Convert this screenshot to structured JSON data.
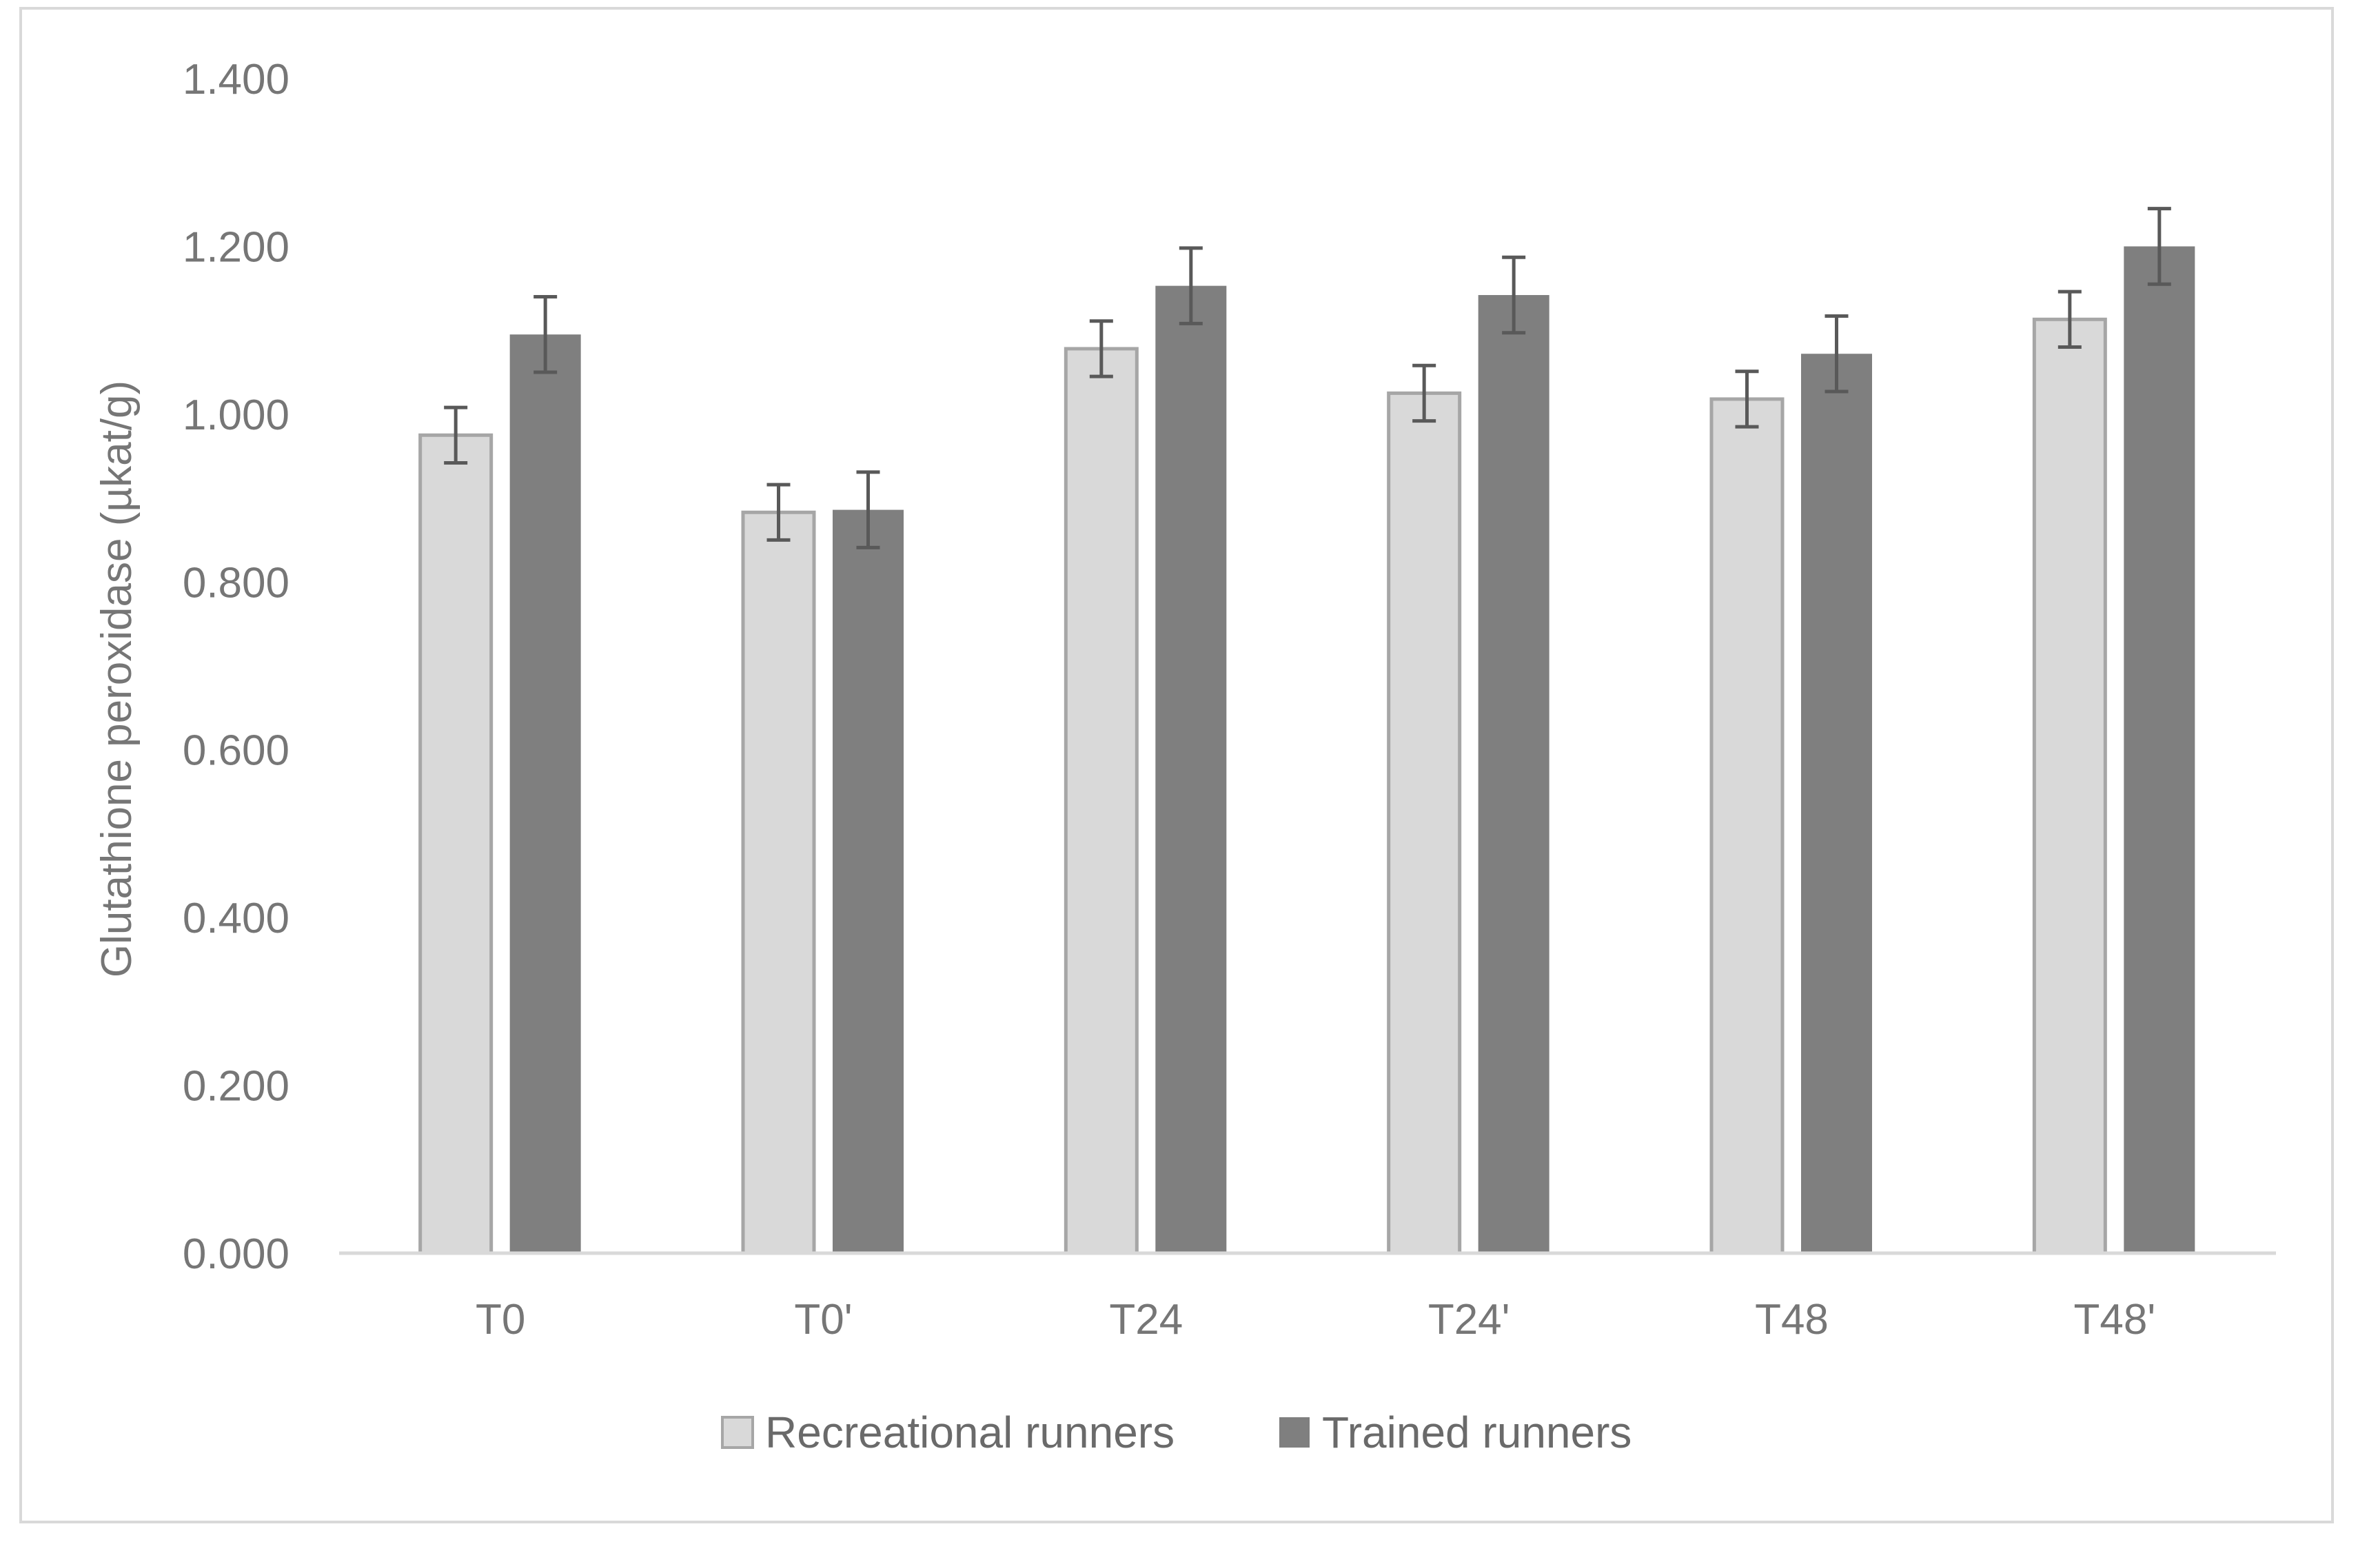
{
  "chart_data": {
    "type": "bar",
    "title": "",
    "xlabel": "",
    "ylabel": "Glutathione peroxidase (µkat/g)",
    "ylim": [
      0,
      1.4
    ],
    "yticks": [
      "0.000",
      "0.200",
      "0.400",
      "0.600",
      "0.800",
      "1.000",
      "1.200",
      "1.400"
    ],
    "categories": [
      "T0",
      "T0'",
      "T24",
      "T24'",
      "T48",
      "T48'"
    ],
    "grid": false,
    "legend_position": "bottom",
    "series": [
      {
        "name": "Recreational runners",
        "color": "#d9d9d9",
        "edge_color": "#a6a6a6",
        "values": [
          0.975,
          0.883,
          1.078,
          1.025,
          1.018,
          1.113
        ],
        "errors": [
          0.033,
          0.033,
          0.033,
          0.033,
          0.033,
          0.033
        ]
      },
      {
        "name": "Trained runners",
        "color": "#7f7f7f",
        "edge_color": "#7f7f7f",
        "values": [
          1.095,
          0.886,
          1.153,
          1.142,
          1.072,
          1.2
        ],
        "errors": [
          0.045,
          0.045,
          0.045,
          0.045,
          0.045,
          0.045
        ]
      }
    ]
  }
}
